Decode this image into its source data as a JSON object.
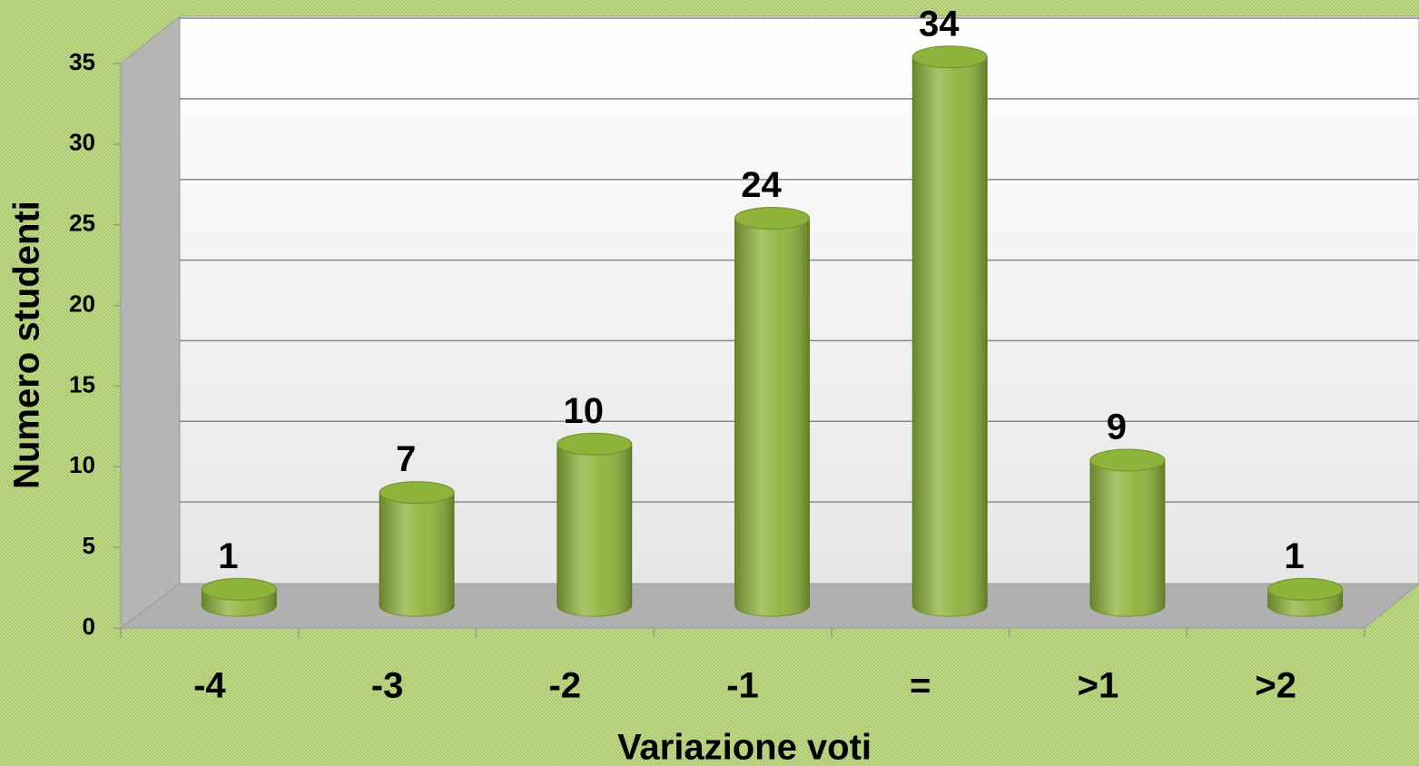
{
  "chart_data": {
    "type": "bar",
    "xlabel": "Variazione voti",
    "ylabel": "Numero studenti",
    "categories": [
      "-4",
      "-3",
      "-2",
      "-1",
      "=",
      ">1",
      ">2"
    ],
    "values": [
      1,
      7,
      10,
      24,
      34,
      9,
      1
    ],
    "color": "#8db33a",
    "ylim": [
      0,
      35
    ],
    "yticks": [
      0,
      5,
      10,
      15,
      20,
      25,
      30,
      35
    ],
    "grid": true
  }
}
